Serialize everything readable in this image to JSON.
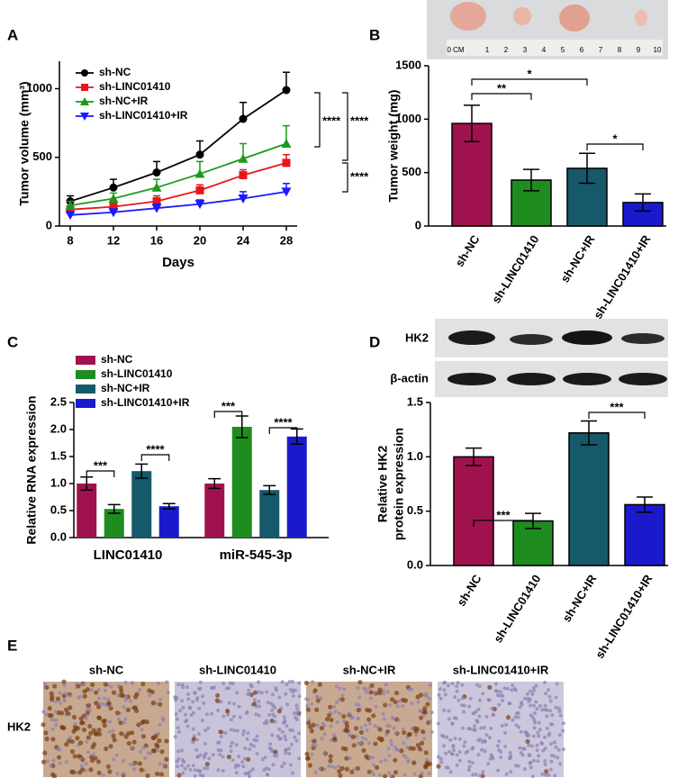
{
  "chart_data": [
    {
      "type": "line",
      "panel": "A",
      "x_label": "Days",
      "y_label": "Tumor volume (mm³)",
      "x": [
        8,
        12,
        16,
        20,
        24,
        28
      ],
      "xlim": [
        7,
        29
      ],
      "xticks": [
        8,
        12,
        16,
        20,
        24,
        28
      ],
      "ylim": [
        0,
        1200
      ],
      "yticks": [
        0,
        500,
        1000
      ],
      "series": [
        {
          "name": "sh-NC",
          "color": "#000000",
          "marker": "circle",
          "values": [
            180,
            280,
            390,
            520,
            780,
            990
          ],
          "errors": [
            40,
            60,
            80,
            100,
            120,
            130
          ]
        },
        {
          "name": "sh-LINC01410",
          "color": "#e8161b",
          "marker": "square",
          "values": [
            120,
            140,
            180,
            260,
            370,
            460
          ],
          "errors": [
            20,
            30,
            40,
            40,
            40,
            60
          ]
        },
        {
          "name": "sh-NC+IR",
          "color": "#1a9a1a",
          "marker": "triangle-up",
          "values": [
            150,
            200,
            280,
            380,
            490,
            600
          ],
          "errors": [
            30,
            40,
            60,
            90,
            110,
            130
          ]
        },
        {
          "name": "sh-LINC01410+IR",
          "color": "#1a1aff",
          "marker": "triangle-down",
          "values": [
            80,
            100,
            130,
            160,
            200,
            250
          ],
          "errors": [
            20,
            20,
            30,
            30,
            50,
            60
          ]
        }
      ],
      "annotations": [
        "****",
        "****",
        "****"
      ]
    },
    {
      "type": "bar",
      "panel": "B",
      "y_label": "Tumor weight (mg)",
      "ruler": [
        "0 CM",
        "1",
        "2",
        "3",
        "4",
        "5",
        "6",
        "7",
        "8",
        "9",
        "10"
      ],
      "categories": [
        "sh-NC",
        "sh-LINC01410",
        "sh-NC+IR",
        "sh-LINC01410+IR"
      ],
      "values": [
        960,
        430,
        540,
        220
      ],
      "errors": [
        170,
        100,
        140,
        80
      ],
      "colors": [
        "#a0124e",
        "#1f8c1f",
        "#15596a",
        "#1a1acc"
      ],
      "ylim": [
        0,
        1500
      ],
      "yticks": [
        0,
        500,
        1000,
        1500
      ],
      "annotations": [
        "**",
        "*",
        "*"
      ]
    },
    {
      "type": "grouped_bar",
      "panel": "C",
      "y_label": "Relative RNA expression",
      "categories": [
        "LINC01410",
        "miR-545-3p"
      ],
      "series": [
        {
          "name": "sh-NC",
          "color": "#a0124e",
          "values": [
            1.0,
            1.0
          ],
          "errors": [
            0.12,
            0.09
          ]
        },
        {
          "name": "sh-LINC01410",
          "color": "#1f8c1f",
          "values": [
            0.53,
            2.05
          ],
          "errors": [
            0.08,
            0.2
          ]
        },
        {
          "name": "sh-NC+IR",
          "color": "#15596a",
          "values": [
            1.23,
            0.88
          ],
          "errors": [
            0.13,
            0.08
          ]
        },
        {
          "name": "sh-LINC01410+IR",
          "color": "#1a1acc",
          "values": [
            0.58,
            1.87
          ],
          "errors": [
            0.05,
            0.14
          ]
        }
      ],
      "ylim": [
        0,
        2.5
      ],
      "yticks": [
        {
          "value": 0,
          "label": "0.0"
        },
        0.5,
        {
          "value": 1,
          "label": "1.0"
        },
        1.5,
        {
          "value": 2,
          "label": "2.0"
        },
        2.5
      ],
      "annotations": [
        "***",
        "****",
        "***",
        "****"
      ]
    },
    {
      "type": "bar",
      "panel": "D",
      "y_label": [
        "Relative HK2",
        "protein expression"
      ],
      "blot_labels": [
        "HK2",
        "β-actin"
      ],
      "categories": [
        "sh-NC",
        "sh-LINC01410",
        "sh-NC+IR",
        "sh-LINC01410+IR"
      ],
      "values": [
        1.0,
        0.41,
        1.22,
        0.56
      ],
      "errors": [
        0.08,
        0.07,
        0.11,
        0.07
      ],
      "colors": [
        "#a0124e",
        "#1f8c1f",
        "#15596a",
        "#1a1acc"
      ],
      "ylim": [
        0,
        1.5
      ],
      "yticks": [
        {
          "value": 0,
          "label": "0.0"
        },
        0.5,
        {
          "value": 1,
          "label": "1.0"
        },
        1.5
      ],
      "annotations": [
        "***",
        "***"
      ]
    }
  ],
  "panel_e": {
    "panel": "E",
    "row_label": "HK2",
    "columns": [
      "sh-NC",
      "sh-LINC01410",
      "sh-NC+IR",
      "sh-LINC01410+IR"
    ]
  }
}
